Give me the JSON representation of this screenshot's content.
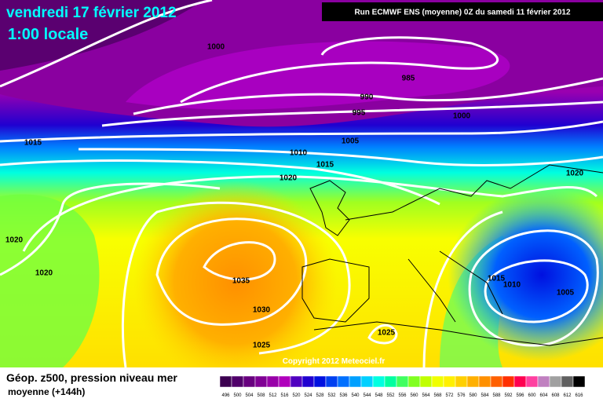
{
  "header": {
    "date": "vendredi 17 février 2012",
    "time": "1:00 locale",
    "run": "Run ECMWF ENS (moyenne) 0Z du samedi 11 février 2012"
  },
  "isobar_labels": [
    1000,
    985,
    990,
    995,
    1000,
    1015,
    1005,
    1010,
    1015,
    1020,
    1020,
    1020,
    1020,
    1035,
    1030,
    1025,
    1025,
    1015,
    1010,
    1005
  ],
  "copyright": "Copyright 2012 Meteociel.fr",
  "legend": {
    "title": "Géop. z500, pression niveau mer",
    "subtitle": "moyenne  (+144h)",
    "labels": [
      496,
      500,
      504,
      508,
      512,
      516,
      520,
      524,
      528,
      532,
      536,
      540,
      544,
      548,
      552,
      556,
      560,
      564,
      568,
      572,
      576,
      580,
      584,
      588,
      592,
      596,
      600,
      604,
      608,
      612,
      616
    ],
    "colors": [
      "#3c0050",
      "#50006a",
      "#68007f",
      "#800094",
      "#9800a8",
      "#b000bc",
      "#5000c0",
      "#2000d0",
      "#0010e0",
      "#0040f0",
      "#0070ff",
      "#00a0ff",
      "#00d0ff",
      "#00ffe0",
      "#00ffa0",
      "#40ff60",
      "#80ff20",
      "#c0ff00",
      "#f0ff00",
      "#fff000",
      "#ffd000",
      "#ffb000",
      "#ff9000",
      "#ff6000",
      "#ff3000",
      "#ff0050",
      "#ff40a0",
      "#c080c0",
      "#a0a0a0",
      "#606060",
      "#000000"
    ]
  }
}
